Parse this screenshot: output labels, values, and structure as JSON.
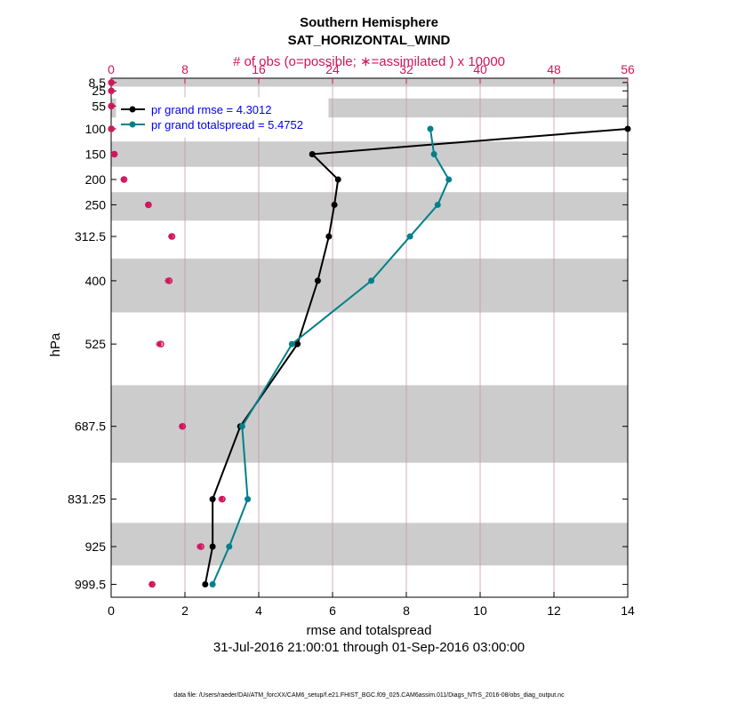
{
  "chart_data": {
    "type": "line",
    "title": "Southern Hemisphere",
    "subtitle": "SAT_HORIZONTAL_WIND",
    "top_axis_label": "# of obs (o=possible; ∗=assimilated ) x 10000",
    "top_axis_ticks": [
      "0",
      "8",
      "16",
      "24",
      "32",
      "40",
      "48",
      "56"
    ],
    "top_axis_range": [
      0,
      56
    ],
    "xlabel": "rmse and totalspread",
    "x_ticks": [
      "0",
      "2",
      "4",
      "6",
      "8",
      "10",
      "12",
      "14"
    ],
    "xlim": [
      0,
      14
    ],
    "ylabel": "hPa",
    "y_ticks": [
      "8.5",
      "25",
      "55",
      "100",
      "150",
      "200",
      "250",
      "312.5",
      "400",
      "525",
      "687.5",
      "831.25",
      "925",
      "999.5"
    ],
    "levels": [
      8.5,
      25,
      55,
      100,
      150,
      200,
      250,
      312.5,
      400,
      525,
      687.5,
      831.25,
      925,
      999.5
    ],
    "ylim": [
      0,
      1025
    ],
    "date_range": "31-Jul-2016 21:00:01 through 01-Sep-2016 03:00:00",
    "footnote": "data file: /Users/raeder/DAI/ATM_forcXX/CAM6_setup/f.e21.FHIST_BGC.f09_025.CAM6assim.011/Diags_NTrS_2016-08/obs_diag_output.nc",
    "series": [
      {
        "name": "rmse",
        "legend": "pr grand rmse = 4.3012",
        "color": "#000000",
        "levels": [
          100,
          150,
          200,
          250,
          312.5,
          400,
          525,
          687.5,
          831.25,
          925,
          999.5
        ],
        "values": [
          14.0,
          5.45,
          6.15,
          6.05,
          5.9,
          5.6,
          5.05,
          3.5,
          2.75,
          2.75,
          2.55
        ]
      },
      {
        "name": "totalspread",
        "legend": "pr grand totalspread = 5.4752",
        "color": "#00808a",
        "levels": [
          100,
          150,
          200,
          250,
          312.5,
          400,
          525,
          687.5,
          831.25,
          925,
          999.5
        ],
        "values": [
          8.65,
          8.75,
          9.15,
          8.85,
          8.1,
          7.05,
          4.9,
          3.55,
          3.7,
          3.2,
          2.75
        ]
      }
    ],
    "obs_counts": {
      "unit": "x 10000",
      "levels": [
        8.5,
        25,
        55,
        100,
        150,
        200,
        250,
        312.5,
        400,
        525,
        687.5,
        831.25,
        925,
        999.5
      ],
      "possible": [
        0.02,
        0.02,
        0.02,
        0.02,
        0.35,
        1.4,
        4.05,
        6.6,
        6.3,
        5.4,
        7.75,
        12.05,
        9.75,
        4.45
      ],
      "assimilated": [
        0.02,
        0.02,
        0.02,
        0.02,
        0.35,
        1.35,
        4.0,
        6.5,
        6.15,
        5.2,
        7.65,
        11.95,
        9.6,
        4.4
      ]
    }
  }
}
